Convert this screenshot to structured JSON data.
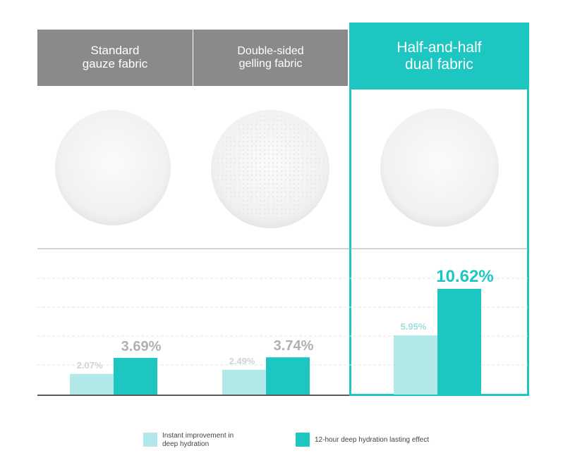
{
  "chart_data": {
    "type": "bar",
    "categories": [
      "Standard gauze fabric",
      "Double-sided gelling fabric",
      "Half-and-half dual fabric"
    ],
    "series": [
      {
        "name": "Instant improvement in deep hydration",
        "color": "#b3e8e8",
        "values": [
          2.07,
          2.49,
          5.95
        ],
        "value_labels": [
          "2.07%",
          "2.49%",
          "5.95%"
        ]
      },
      {
        "name": "12-hour deep hydration lasting effect",
        "color": "#1dc6c0",
        "values": [
          3.69,
          3.74,
          10.62
        ],
        "value_labels": [
          "3.69%",
          "3.74%",
          "10.62%"
        ]
      }
    ]
  }
}
